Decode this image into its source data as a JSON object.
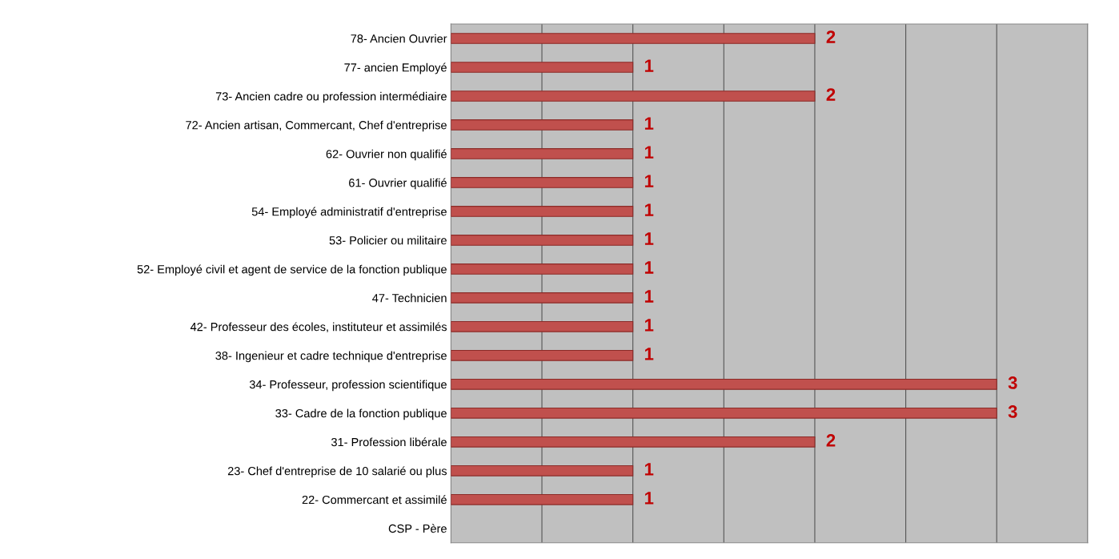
{
  "chart_data": {
    "type": "bar",
    "orientation": "horizontal",
    "categories": [
      "78- Ancien Ouvrier",
      "77- ancien Employé",
      "73- Ancien cadre ou profession intermédiaire",
      "72- Ancien artisan, Commercant, Chef d'entreprise",
      "62- Ouvrier non qualifié",
      "61- Ouvrier qualifié",
      "54- Employé administratif d'entreprise",
      "53- Policier ou militaire",
      "52- Employé civil et agent de service de la fonction publique",
      "47- Technicien",
      "42- Professeur des écoles, instituteur et assimilés",
      "38- Ingenieur et cadre technique d'entreprise",
      "34- Professeur, profession scientifique",
      "33- Cadre de la fonction publique",
      "31- Profession libérale",
      "23- Chef d'entreprise de 10 salarié ou plus",
      "22- Commercant et assimilé",
      "CSP - Père"
    ],
    "values": [
      2,
      1,
      2,
      1,
      1,
      1,
      1,
      1,
      1,
      1,
      1,
      1,
      3,
      3,
      2,
      1,
      1,
      null
    ],
    "color": "#c0504d",
    "xlim": [
      0,
      3.5
    ],
    "xticks": [
      {
        "value": 0,
        "label": null
      },
      {
        "value": 0.5,
        "label": null
      },
      {
        "value": 1,
        "label": null
      },
      {
        "value": 1.5,
        "label": null
      },
      {
        "value": 2,
        "label": null
      },
      {
        "value": 2.5,
        "label": null
      },
      {
        "value": 3,
        "label": null
      },
      {
        "value": 3.5,
        "label": null
      }
    ],
    "tick_labels": "y",
    "grid": "x",
    "data_labels": true,
    "legend": false
  }
}
